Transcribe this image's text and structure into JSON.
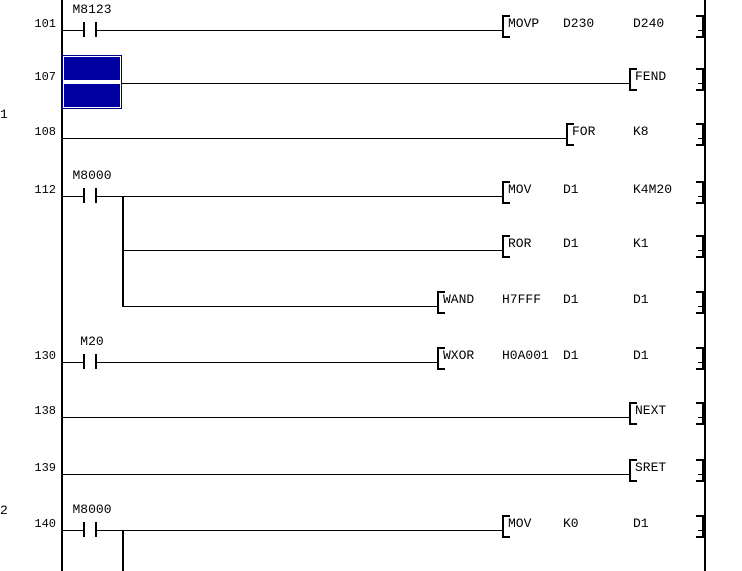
{
  "app": {
    "view": "ladder-diagram",
    "colors": {
      "background": "#ffffff",
      "wire": "#000000",
      "text": "#000000",
      "cursor_fill": "#0000A0",
      "cursor_border": "#000080"
    }
  },
  "margin_labels": [
    {
      "text": "1"
    },
    {
      "text": "2"
    }
  ],
  "rungs": [
    {
      "step": "101",
      "contact": "M8123",
      "opcode": "MOVP",
      "operands": [
        "D230",
        "D240"
      ]
    },
    {
      "step": "107",
      "contact": "",
      "opcode": "FEND",
      "operands": [],
      "cursor": true
    },
    {
      "step": "108",
      "contact": "",
      "opcode": "FOR",
      "operands": [
        "K8"
      ]
    },
    {
      "step": "112",
      "contact": "M8000",
      "opcode": "MOV",
      "operands": [
        "D1",
        "K4M20"
      ],
      "branch_rows": 2
    },
    {
      "step": "",
      "contact": "",
      "opcode": "ROR",
      "operands": [
        "D1",
        "K1"
      ],
      "branch_child": true
    },
    {
      "step": "",
      "contact": "",
      "opcode": "WAND",
      "operands": [
        "H7FFF",
        "D1",
        "D1"
      ],
      "branch_child": true
    },
    {
      "step": "130",
      "contact": "M20",
      "opcode": "WXOR",
      "operands": [
        "H0A001",
        "D1",
        "D1"
      ]
    },
    {
      "step": "138",
      "contact": "",
      "opcode": "NEXT",
      "operands": []
    },
    {
      "step": "139",
      "contact": "",
      "opcode": "SRET",
      "operands": []
    },
    {
      "step": "140",
      "contact": "M8000",
      "opcode": "MOV",
      "operands": [
        "K0",
        "D1"
      ],
      "branch_down": true
    }
  ]
}
